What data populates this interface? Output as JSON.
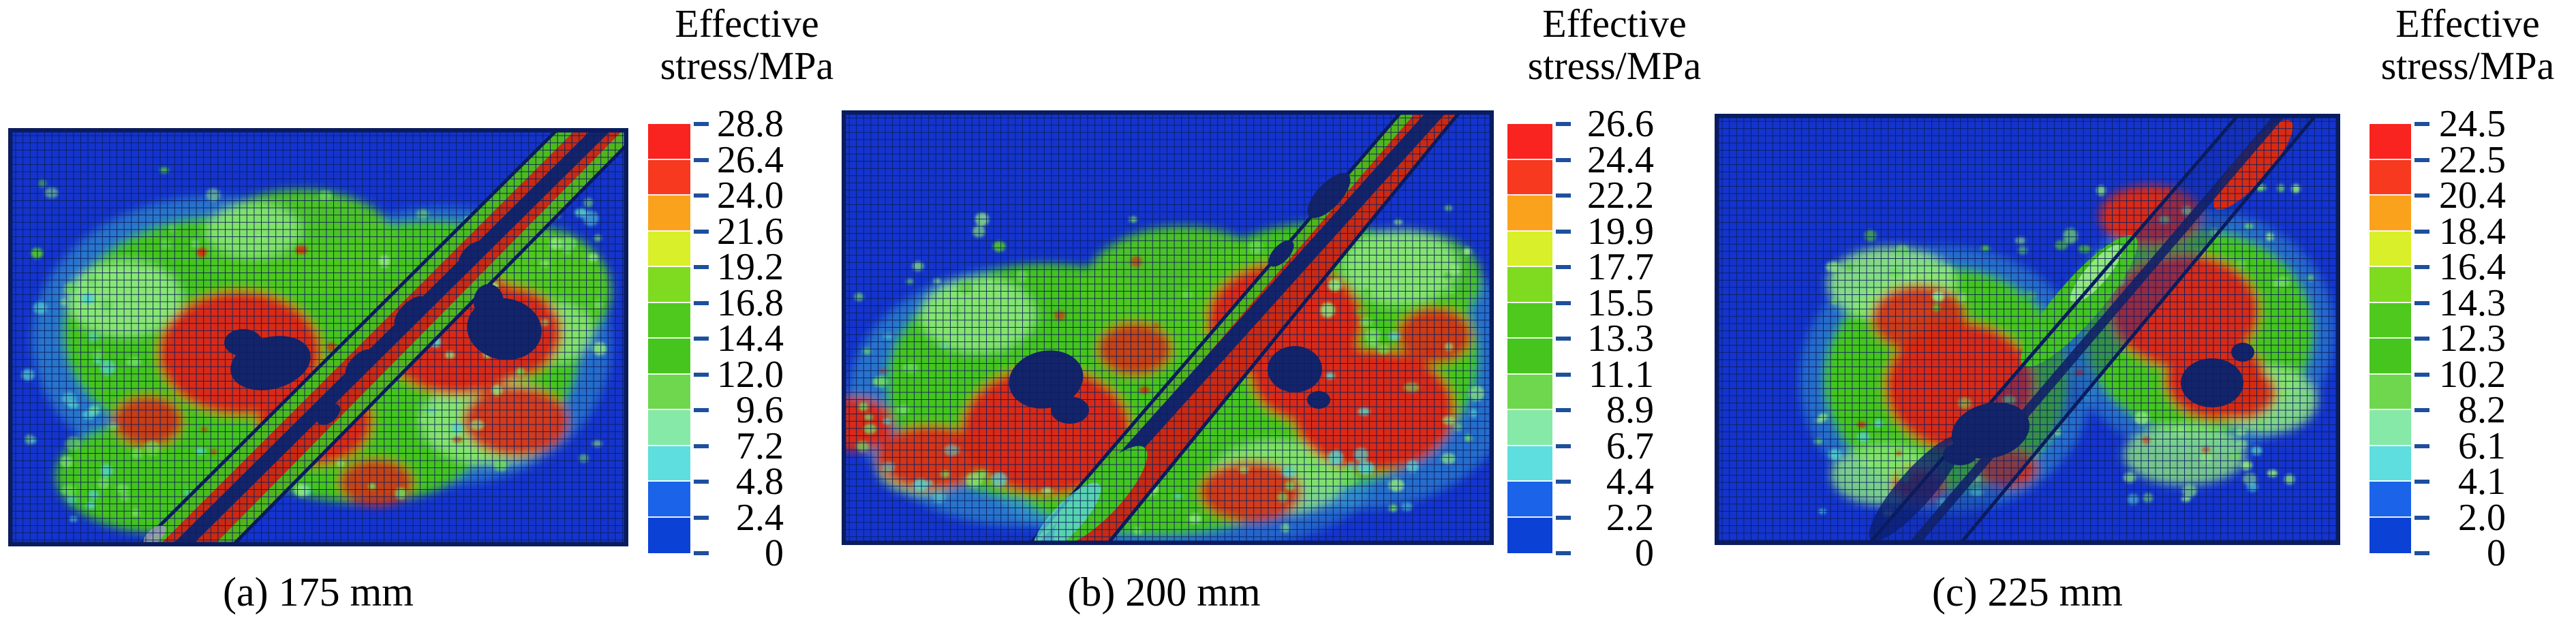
{
  "figure": {
    "legend_title_line1": "Effective",
    "legend_title_line2": "stress/MPa",
    "panels": [
      {
        "caption": "(a) 175 mm",
        "tick_labels": [
          "28.8",
          "26.4",
          "24.0",
          "21.6",
          "19.2",
          "16.8",
          "14.4",
          "12.0",
          "9.6",
          "7.2",
          "4.8",
          "2.4",
          "0"
        ]
      },
      {
        "caption": "(b) 200 mm",
        "tick_labels": [
          "26.6",
          "24.4",
          "22.2",
          "19.9",
          "17.7",
          "15.5",
          "13.3",
          "11.1",
          "8.9",
          "6.7",
          "4.4",
          "2.2",
          "0"
        ]
      },
      {
        "caption": "(c) 225 mm",
        "tick_labels": [
          "24.5",
          "22.5",
          "20.4",
          "18.4",
          "16.4",
          "14.3",
          "12.3",
          "10.2",
          "8.2",
          "6.1",
          "4.1",
          "2.0",
          "0"
        ]
      }
    ],
    "colors": {
      "colorbar_top_to_bottom": [
        "#f9231f",
        "#f6391f",
        "#fba21c",
        "#d8ef29",
        "#7edb1f",
        "#4fc91d",
        "#46c51e",
        "#6ed74e",
        "#86e9a7",
        "#5edede",
        "#1b63e8",
        "#0c41d6"
      ],
      "tick_dash": "#1d4f9e",
      "mesh_background_blue": "#1434cf",
      "grid_navy": "#0b1d5e",
      "hole_navy": "#13246b",
      "stress_red": "#d92b12",
      "stress_green": "#45c51d",
      "text": "#000000"
    }
  },
  "chart_data": [
    {
      "type": "heatmap",
      "title": "Effective stress/MPa",
      "caption": "(a) 175 mm",
      "units": "MPa",
      "value_range": [
        0,
        28.8
      ],
      "colorbar_tick_values": [
        28.8,
        26.4,
        24.0,
        21.6,
        19.2,
        16.8,
        14.4,
        12.0,
        9.6,
        7.2,
        4.8,
        2.4,
        0
      ],
      "colorbar_colors_top_to_bottom": [
        "#f9231f",
        "#f6391f",
        "#fba21c",
        "#d8ef29",
        "#7edb1f",
        "#4fc91d",
        "#46c51e",
        "#6ed74e",
        "#86e9a7",
        "#5edede",
        "#1b63e8",
        "#0c41d6"
      ],
      "legend_position": "right",
      "content": "Finite-element mesh contour of effective stress: blue background, green/red stress cloud around an inclined fracture band running lower-left to upper-right, dark navy failed zones at band center"
    },
    {
      "type": "heatmap",
      "title": "Effective stress/MPa",
      "caption": "(b) 200 mm",
      "units": "MPa",
      "value_range": [
        0,
        26.6
      ],
      "colorbar_tick_values": [
        26.6,
        24.4,
        22.2,
        19.9,
        17.7,
        15.5,
        13.3,
        11.1,
        8.9,
        6.7,
        4.4,
        2.2,
        0
      ],
      "colorbar_colors_top_to_bottom": [
        "#f9231f",
        "#f6391f",
        "#fba21c",
        "#d8ef29",
        "#7edb1f",
        "#4fc91d",
        "#46c51e",
        "#6ed74e",
        "#86e9a7",
        "#5edede",
        "#1b63e8",
        "#0c41d6"
      ],
      "legend_position": "right",
      "content": "Finite-element mesh contour of effective stress: wide green/red stress cloud spanning panel width around inclined fracture band, two dark navy holes beside the band"
    },
    {
      "type": "heatmap",
      "title": "Effective stress/MPa",
      "caption": "(c) 225 mm",
      "units": "MPa",
      "value_range": [
        0,
        24.5
      ],
      "colorbar_tick_values": [
        24.5,
        22.5,
        20.4,
        18.4,
        16.4,
        14.3,
        12.3,
        10.2,
        8.2,
        6.1,
        4.1,
        2.0,
        0
      ],
      "colorbar_colors_top_to_bottom": [
        "#f9231f",
        "#f6391f",
        "#fba21c",
        "#d8ef29",
        "#7edb1f",
        "#4fc91d",
        "#46c51e",
        "#6ed74e",
        "#86e9a7",
        "#5edede",
        "#1b63e8",
        "#0c41d6"
      ],
      "legend_position": "right",
      "content": "Finite-element mesh contour of effective stress: two separated green/red stress lobes on either side of inclined fracture band, large blue regions elsewhere"
    }
  ]
}
